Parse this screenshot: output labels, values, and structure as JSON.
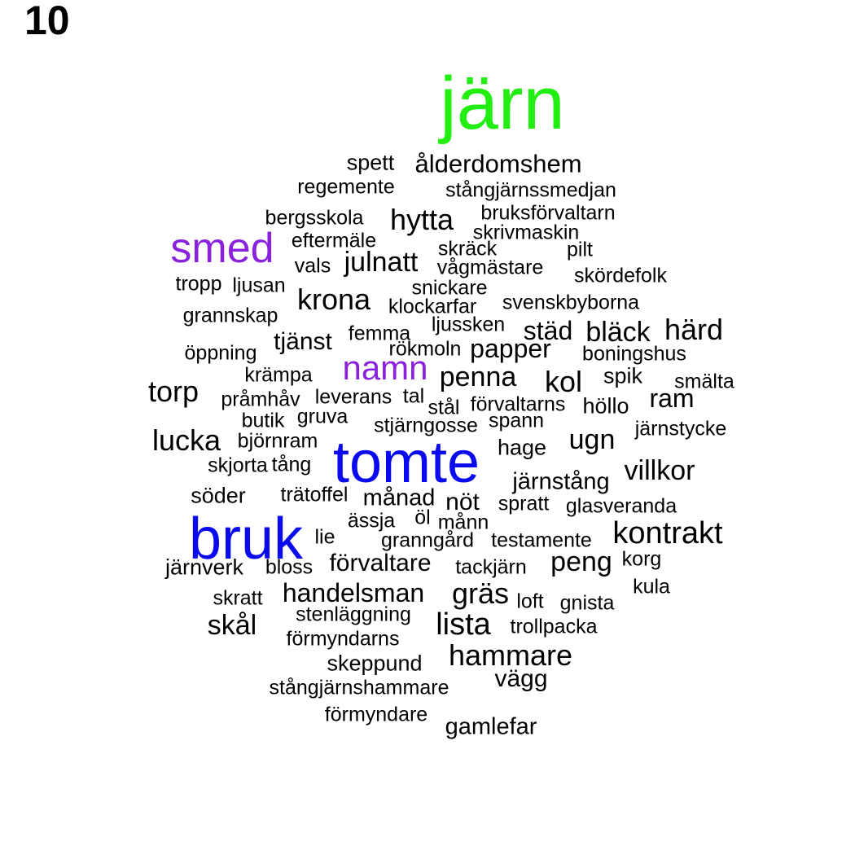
{
  "panel_label": "10",
  "colors": {
    "black": "#000000",
    "green": "#22ee11",
    "purple": "#8a22dd",
    "blue": "#0a0aee"
  },
  "words": [
    {
      "text": "järn",
      "color": "green"
    },
    {
      "text": "spett"
    },
    {
      "text": "ålderdomshem"
    },
    {
      "text": "regemente"
    },
    {
      "text": "stångjärnssmedjan"
    },
    {
      "text": "bergsskola"
    },
    {
      "text": "hytta"
    },
    {
      "text": "bruksförvaltarn"
    },
    {
      "text": "smed",
      "color": "purple"
    },
    {
      "text": "eftermäle"
    },
    {
      "text": "skrivmaskin"
    },
    {
      "text": "skräck"
    },
    {
      "text": "pilt"
    },
    {
      "text": "vals"
    },
    {
      "text": "julnatt"
    },
    {
      "text": "vågmästare"
    },
    {
      "text": "skördefolk"
    },
    {
      "text": "tropp"
    },
    {
      "text": "ljusan"
    },
    {
      "text": "snickare"
    },
    {
      "text": "krona"
    },
    {
      "text": "klockarfar"
    },
    {
      "text": "svenskbyborna"
    },
    {
      "text": "grannskap"
    },
    {
      "text": "ljussken"
    },
    {
      "text": "femma"
    },
    {
      "text": "städ"
    },
    {
      "text": "bläck"
    },
    {
      "text": "härd"
    },
    {
      "text": "tjänst"
    },
    {
      "text": "rökmoln"
    },
    {
      "text": "papper"
    },
    {
      "text": "öppning"
    },
    {
      "text": "boningshus"
    },
    {
      "text": "namn",
      "color": "purple"
    },
    {
      "text": "krämpa"
    },
    {
      "text": "penna"
    },
    {
      "text": "kol"
    },
    {
      "text": "spik"
    },
    {
      "text": "smälta"
    },
    {
      "text": "torp"
    },
    {
      "text": "pråmhåv"
    },
    {
      "text": "leverans"
    },
    {
      "text": "tal"
    },
    {
      "text": "stål"
    },
    {
      "text": "förvaltarns"
    },
    {
      "text": "höllo"
    },
    {
      "text": "ram"
    },
    {
      "text": "butik"
    },
    {
      "text": "gruva"
    },
    {
      "text": "spann"
    },
    {
      "text": "stjärngosse"
    },
    {
      "text": "järnstycke"
    },
    {
      "text": "lucka"
    },
    {
      "text": "björnram"
    },
    {
      "text": "ugn"
    },
    {
      "text": "hage"
    },
    {
      "text": "tomte",
      "color": "blue"
    },
    {
      "text": "skjorta"
    },
    {
      "text": "tång"
    },
    {
      "text": "villkor"
    },
    {
      "text": "järnstång"
    },
    {
      "text": "söder"
    },
    {
      "text": "trätoffel"
    },
    {
      "text": "månad"
    },
    {
      "text": "nöt"
    },
    {
      "text": "spratt"
    },
    {
      "text": "glasveranda"
    },
    {
      "text": "ässja"
    },
    {
      "text": "öl"
    },
    {
      "text": "månn"
    },
    {
      "text": "bruk",
      "color": "blue"
    },
    {
      "text": "lie"
    },
    {
      "text": "granngård"
    },
    {
      "text": "testamente"
    },
    {
      "text": "kontrakt"
    },
    {
      "text": "peng"
    },
    {
      "text": "korg"
    },
    {
      "text": "järnverk"
    },
    {
      "text": "bloss"
    },
    {
      "text": "förvaltare"
    },
    {
      "text": "tackjärn"
    },
    {
      "text": "skratt"
    },
    {
      "text": "handelsman"
    },
    {
      "text": "gräs"
    },
    {
      "text": "loft"
    },
    {
      "text": "gnista"
    },
    {
      "text": "kula"
    },
    {
      "text": "stenläggning"
    },
    {
      "text": "skål"
    },
    {
      "text": "lista"
    },
    {
      "text": "trollpacka"
    },
    {
      "text": "förmyndarns"
    },
    {
      "text": "hammare"
    },
    {
      "text": "skeppund"
    },
    {
      "text": "vägg"
    },
    {
      "text": "stångjärnshammare"
    },
    {
      "text": "förmyndare"
    },
    {
      "text": "gamlefar"
    }
  ]
}
